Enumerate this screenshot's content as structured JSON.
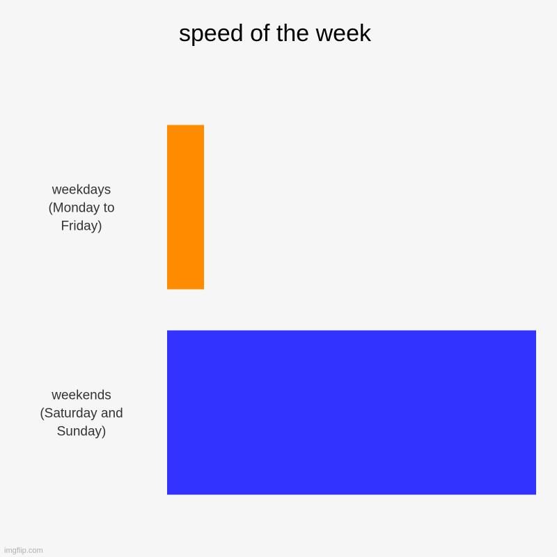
{
  "chart_data": {
    "type": "bar",
    "orientation": "horizontal",
    "title": "speed of the week",
    "xlabel": "",
    "ylabel": "",
    "grid": false,
    "categories": [
      [
        "weekdays",
        "(Monday to",
        "Friday)"
      ],
      [
        "weekends",
        "(Saturday and",
        "Sunday)"
      ]
    ],
    "values": [
      10,
      100
    ],
    "colors": [
      "#ff8c00",
      "#3333ff"
    ],
    "xlim": [
      0,
      100
    ]
  },
  "watermark": "imgflip.com"
}
